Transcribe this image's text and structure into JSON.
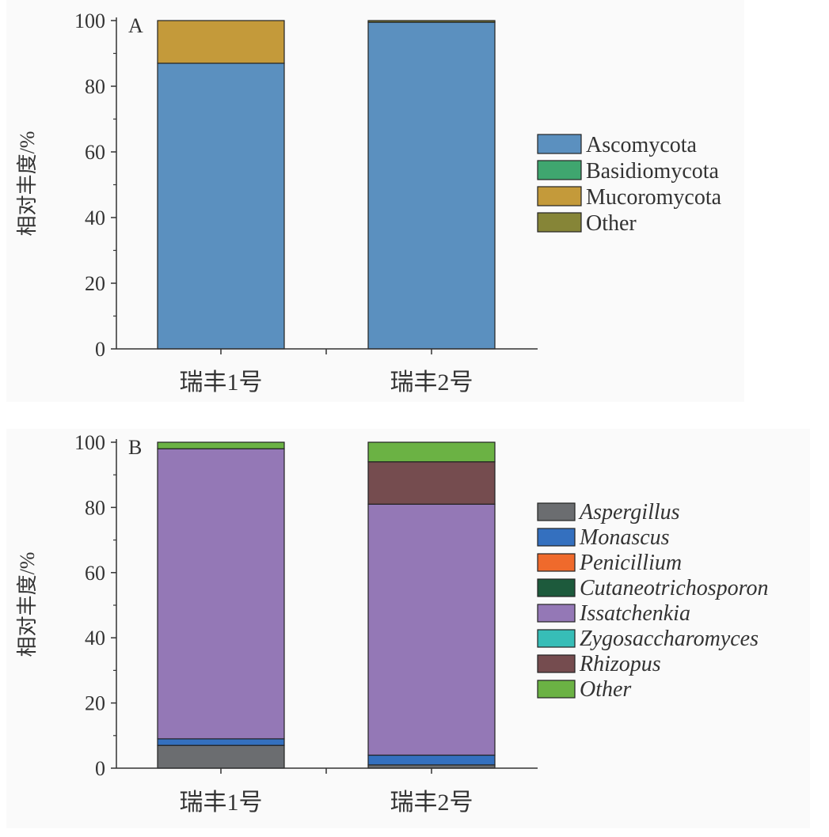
{
  "chart_data": [
    {
      "type": "bar",
      "stacked": true,
      "panel_label": "A",
      "ylabel": "相对丰度/%",
      "ylim": [
        0,
        100
      ],
      "yticks": [
        "0",
        "20",
        "40",
        "60",
        "80",
        "100"
      ],
      "categories": [
        "瑞丰1号",
        "瑞丰2号"
      ],
      "legend_position": "right",
      "legend_italic": false,
      "series": [
        {
          "name": "Ascomycota",
          "color": "#5b90bf",
          "values": [
            87,
            99.5
          ]
        },
        {
          "name": "Basidiomycota",
          "color": "#3fa66f",
          "values": [
            0,
            0
          ]
        },
        {
          "name": "Mucoromycota",
          "color": "#c49a3a",
          "values": [
            13,
            0
          ]
        },
        {
          "name": "Other",
          "color": "#868537",
          "values": [
            0,
            0.5
          ]
        }
      ]
    },
    {
      "type": "bar",
      "stacked": true,
      "panel_label": "B",
      "ylabel": "相对丰度/%",
      "ylim": [
        0,
        100
      ],
      "yticks": [
        "0",
        "20",
        "40",
        "60",
        "80",
        "100"
      ],
      "categories": [
        "瑞丰1号",
        "瑞丰2号"
      ],
      "legend_position": "right",
      "legend_italic": true,
      "series": [
        {
          "name": "Aspergillus",
          "color": "#6b6d70",
          "values": [
            7,
            1
          ]
        },
        {
          "name": "Monascus",
          "color": "#3470bf",
          "values": [
            2,
            3
          ]
        },
        {
          "name": "Penicillium",
          "color": "#ef6a2c",
          "values": [
            0,
            0
          ]
        },
        {
          "name": "Cutaneotrichosporon",
          "color": "#1d5a3c",
          "values": [
            0,
            0
          ]
        },
        {
          "name": "Issatchenkia",
          "color": "#9478b6",
          "values": [
            89,
            77
          ]
        },
        {
          "name": "Zygosaccharomyces",
          "color": "#37bdb7",
          "values": [
            0,
            0
          ]
        },
        {
          "name": "Rhizopus",
          "color": "#754c4f",
          "values": [
            0,
            13
          ]
        },
        {
          "name": "Other",
          "color": "#6bb244",
          "values": [
            2,
            6
          ]
        }
      ]
    }
  ]
}
